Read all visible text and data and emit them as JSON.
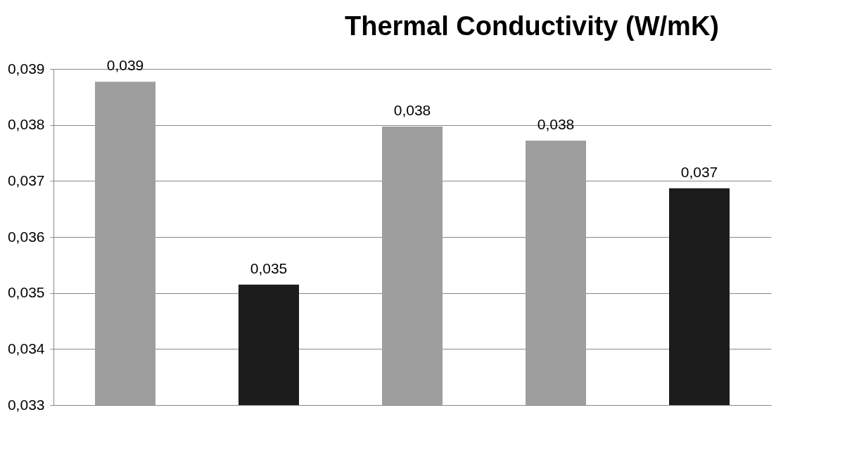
{
  "chart_data": {
    "type": "bar",
    "title": "Thermal Conductivity (W/mK)",
    "categories": [
      null,
      null,
      null,
      null,
      null
    ],
    "values": [
      0.03877,
      0.03515,
      0.03797,
      0.03772,
      0.03687
    ],
    "colors": [
      "#9e9e9e",
      "#1c1c1c",
      "#9e9e9e",
      "#9e9e9e",
      "#1c1c1c"
    ],
    "value_labels": [
      "0,039",
      "0,035",
      "0,038",
      "0,038",
      "0,037"
    ],
    "ylim": [
      0.033,
      0.039
    ],
    "yticks": [
      {
        "value": 0.033,
        "label": "0,033"
      },
      {
        "value": 0.034,
        "label": "0,034"
      },
      {
        "value": 0.035,
        "label": "0,035"
      },
      {
        "value": 0.036,
        "label": "0,036"
      },
      {
        "value": 0.037,
        "label": "0,037"
      },
      {
        "value": 0.038,
        "label": "0,038"
      },
      {
        "value": 0.039,
        "label": "0,039"
      }
    ],
    "grid": "y",
    "tick_labels": "y"
  }
}
